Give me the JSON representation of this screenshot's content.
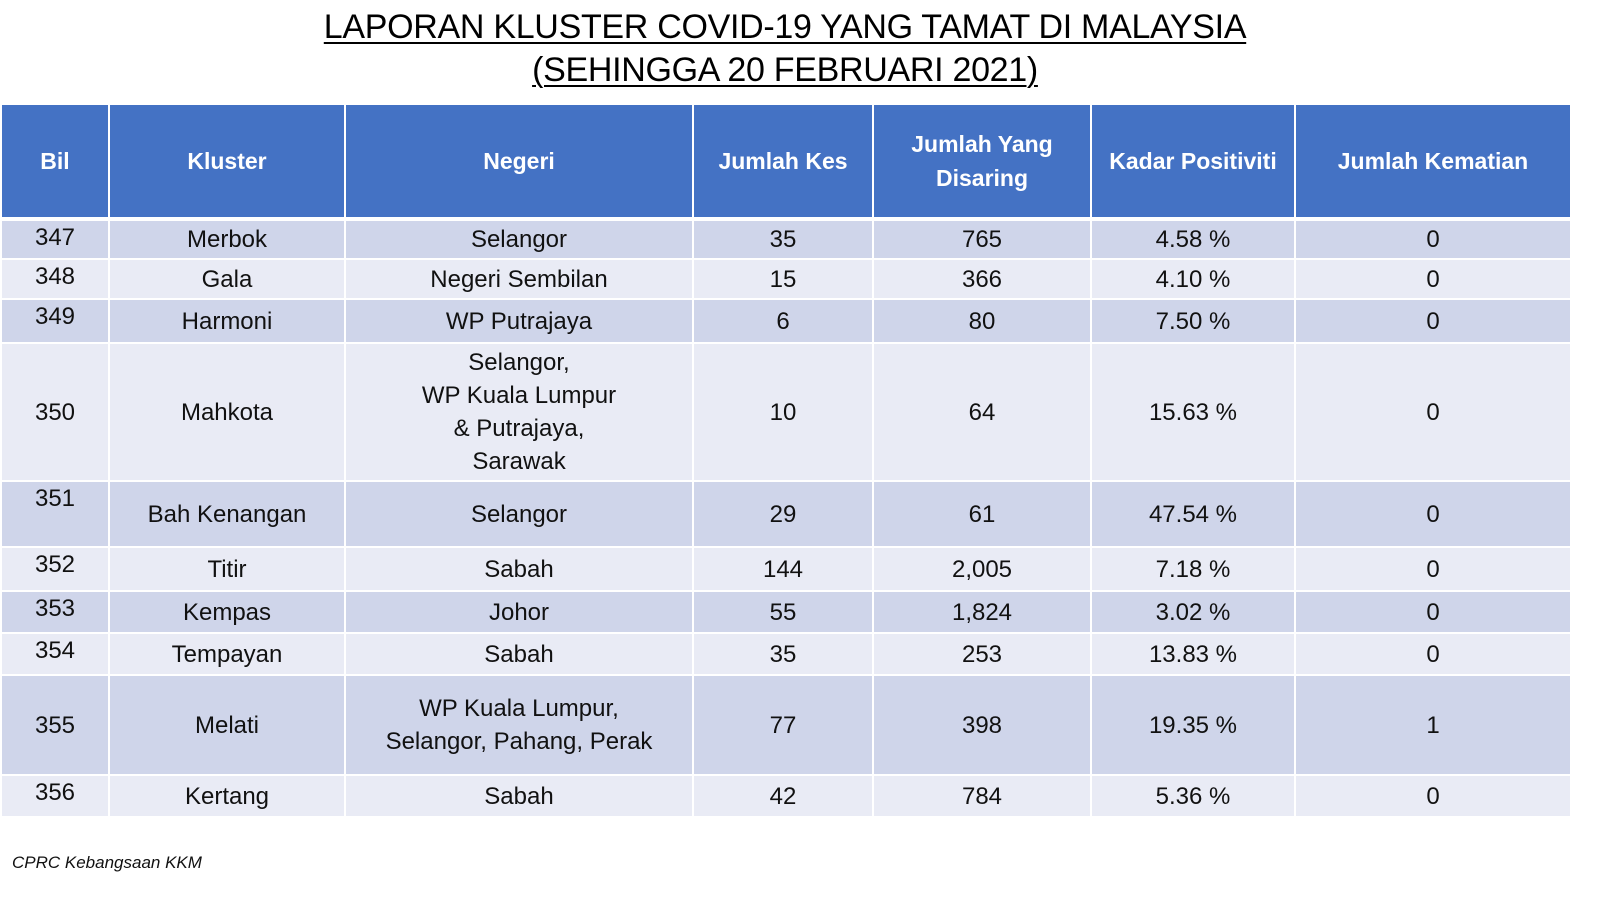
{
  "title": {
    "line1": "LAPORAN KLUSTER COVID-19 YANG TAMAT DI MALAYSIA",
    "line2": "(SEHINGGA 20 FEBRUARI 2021)"
  },
  "table": {
    "headers": {
      "bil": "Bil",
      "kluster": "Kluster",
      "negeri": "Negeri",
      "jumlah_kes": "Jumlah Kes",
      "jumlah_disaring_line1": "Jumlah Yang",
      "jumlah_disaring_line2": "Disaring",
      "kadar_positiviti": "Kadar Positiviti",
      "jumlah_kematian": "Jumlah Kematian"
    },
    "rows": [
      {
        "bil": "347",
        "kluster": "Merbok",
        "negeri": [
          "Selangor"
        ],
        "kes": "35",
        "disaring": "765",
        "positiviti": "4.58 %",
        "kematian": "0"
      },
      {
        "bil": "348",
        "kluster": "Gala",
        "negeri": [
          "Negeri Sembilan"
        ],
        "kes": "15",
        "disaring": "366",
        "positiviti": "4.10 %",
        "kematian": "0"
      },
      {
        "bil": "349",
        "kluster": "Harmoni",
        "negeri": [
          "WP Putrajaya"
        ],
        "kes": "6",
        "disaring": "80",
        "positiviti": "7.50 %",
        "kematian": "0"
      },
      {
        "bil": "350",
        "kluster": "Mahkota",
        "negeri": [
          "Selangor,",
          "WP Kuala Lumpur",
          "& Putrajaya,",
          "Sarawak"
        ],
        "kes": "10",
        "disaring": "64",
        "positiviti": "15.63 %",
        "kematian": "0"
      },
      {
        "bil": "351",
        "kluster": "Bah Kenangan",
        "negeri": [
          "Selangor"
        ],
        "kes": "29",
        "disaring": "61",
        "positiviti": "47.54 %",
        "kematian": "0"
      },
      {
        "bil": "352",
        "kluster": "Titir",
        "negeri": [
          "Sabah"
        ],
        "kes": "144",
        "disaring": "2,005",
        "positiviti": "7.18 %",
        "kematian": "0"
      },
      {
        "bil": "353",
        "kluster": "Kempas",
        "negeri": [
          "Johor"
        ],
        "kes": "55",
        "disaring": "1,824",
        "positiviti": "3.02 %",
        "kematian": "0"
      },
      {
        "bil": "354",
        "kluster": "Tempayan",
        "negeri": [
          "Sabah"
        ],
        "kes": "35",
        "disaring": "253",
        "positiviti": "13.83 %",
        "kematian": "0"
      },
      {
        "bil": "355",
        "kluster": "Melati",
        "negeri": [
          "WP Kuala Lumpur,",
          "Selangor, Pahang, Perak"
        ],
        "kes": "77",
        "disaring": "398",
        "positiviti": "19.35 %",
        "kematian": "1"
      },
      {
        "bil": "356",
        "kluster": "Kertang",
        "negeri": [
          "Sabah"
        ],
        "kes": "42",
        "disaring": "784",
        "positiviti": "5.36 %",
        "kematian": "0"
      }
    ]
  },
  "footer": "CPRC Kebangsaan KKM",
  "colors": {
    "header_bg": "#4472c4",
    "row_odd": "#cfd5ea",
    "row_even": "#e9ebf5"
  }
}
